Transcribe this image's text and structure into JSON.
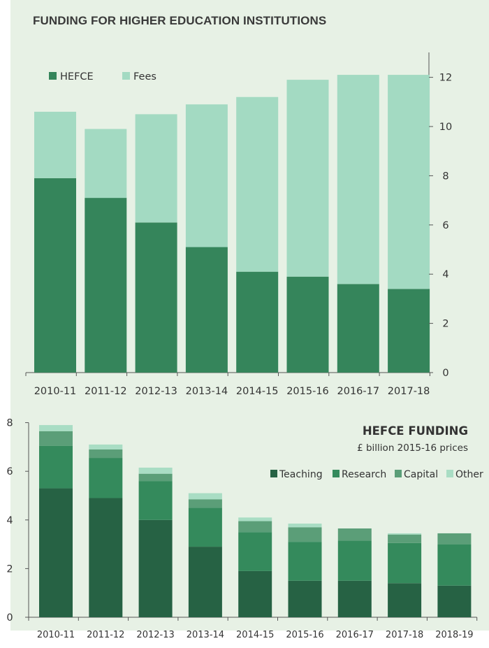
{
  "title": "FUNDING FOR HIGHER EDUCATION INSTITUTIONS",
  "colors": {
    "panel": "#e7f1e5",
    "hefce": "#35855b",
    "fees": "#a3dac2",
    "teaching": "#266244",
    "research": "#348a5c",
    "capital": "#5b9e78",
    "other": "#a9ddc4",
    "axis": "#555555"
  },
  "chart_data": [
    {
      "type": "bar",
      "stacked": true,
      "categories": [
        "2010-11",
        "2011-12",
        "2012-13",
        "2013-14",
        "2014-15",
        "2015-16",
        "2016-17",
        "2017-18"
      ],
      "series": [
        {
          "name": "HEFCE",
          "values": [
            7.9,
            7.1,
            6.1,
            5.1,
            4.1,
            3.9,
            3.6,
            3.4
          ]
        },
        {
          "name": "Fees",
          "values": [
            2.7,
            2.8,
            4.4,
            5.8,
            7.1,
            8.0,
            8.5,
            8.7
          ]
        }
      ],
      "ylim": [
        0,
        13
      ],
      "yticks": [
        0,
        2,
        4,
        6,
        8,
        10,
        12
      ],
      "y_axis_side": "right",
      "legend": "top-left",
      "title": "FUNDING FOR HIGHER EDUCATION INSTITUTIONS"
    },
    {
      "type": "bar",
      "stacked": true,
      "title": "HEFCE FUNDING",
      "subtitle": "£ billion 2015-16 prices",
      "categories": [
        "2010-11",
        "2011-12",
        "2012-13",
        "2013-14",
        "2014-15",
        "2015-16",
        "2016-17",
        "2017-18",
        "2018-19"
      ],
      "series": [
        {
          "name": "Teaching",
          "values": [
            5.3,
            4.9,
            4.0,
            2.9,
            1.9,
            1.5,
            1.5,
            1.4,
            1.3
          ]
        },
        {
          "name": "Research",
          "values": [
            1.75,
            1.65,
            1.6,
            1.6,
            1.6,
            1.6,
            1.65,
            1.65,
            1.7
          ]
        },
        {
          "name": "Capital",
          "values": [
            0.6,
            0.35,
            0.3,
            0.35,
            0.45,
            0.6,
            0.5,
            0.35,
            0.45
          ]
        },
        {
          "name": "Other",
          "values": [
            0.25,
            0.2,
            0.25,
            0.25,
            0.15,
            0.15,
            0.0,
            0.05,
            0.0
          ]
        }
      ],
      "ylim": [
        0,
        8
      ],
      "yticks": [
        0,
        2,
        4,
        6,
        8
      ],
      "y_axis_side": "left",
      "legend": "top-right"
    }
  ]
}
